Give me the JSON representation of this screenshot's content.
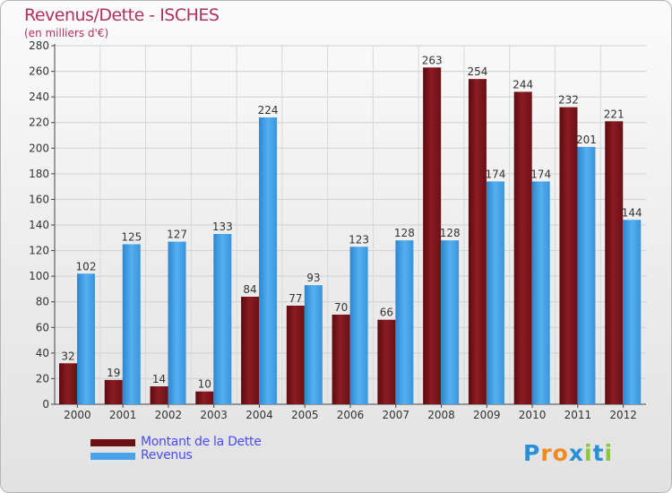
{
  "title": "Revenus/Dette - ISCHES",
  "subtitle": "(en milliers d'€)",
  "logo": {
    "text": "Proxiti",
    "letters": [
      "P",
      "r",
      "o",
      "x",
      "i",
      "t",
      "i"
    ],
    "colors": [
      "#2a8fd4",
      "#f08a1e",
      "#f08a1e",
      "#2a8fd4",
      "#8cc540",
      "#2a8fd4",
      "#8cc540"
    ]
  },
  "colors": {
    "dette": "#8b1c23",
    "revenus": "#4aa3e8"
  },
  "chart_data": {
    "type": "bar",
    "categories": [
      "2000",
      "2001",
      "2002",
      "2003",
      "2004",
      "2005",
      "2006",
      "2007",
      "2008",
      "2009",
      "2010",
      "2011",
      "2012"
    ],
    "series": [
      {
        "name": "Montant de la Dette",
        "values": [
          32,
          19,
          14,
          10,
          84,
          77,
          70,
          66,
          263,
          254,
          244,
          232,
          221
        ]
      },
      {
        "name": "Revenus",
        "values": [
          102,
          125,
          127,
          133,
          224,
          93,
          123,
          128,
          128,
          174,
          174,
          201,
          144
        ]
      }
    ],
    "ylim": [
      0,
      280
    ],
    "yticks": [
      0,
      20,
      40,
      60,
      80,
      100,
      120,
      140,
      160,
      180,
      200,
      220,
      240,
      260,
      280
    ],
    "grid": true,
    "legend_position": "bottom-left"
  }
}
